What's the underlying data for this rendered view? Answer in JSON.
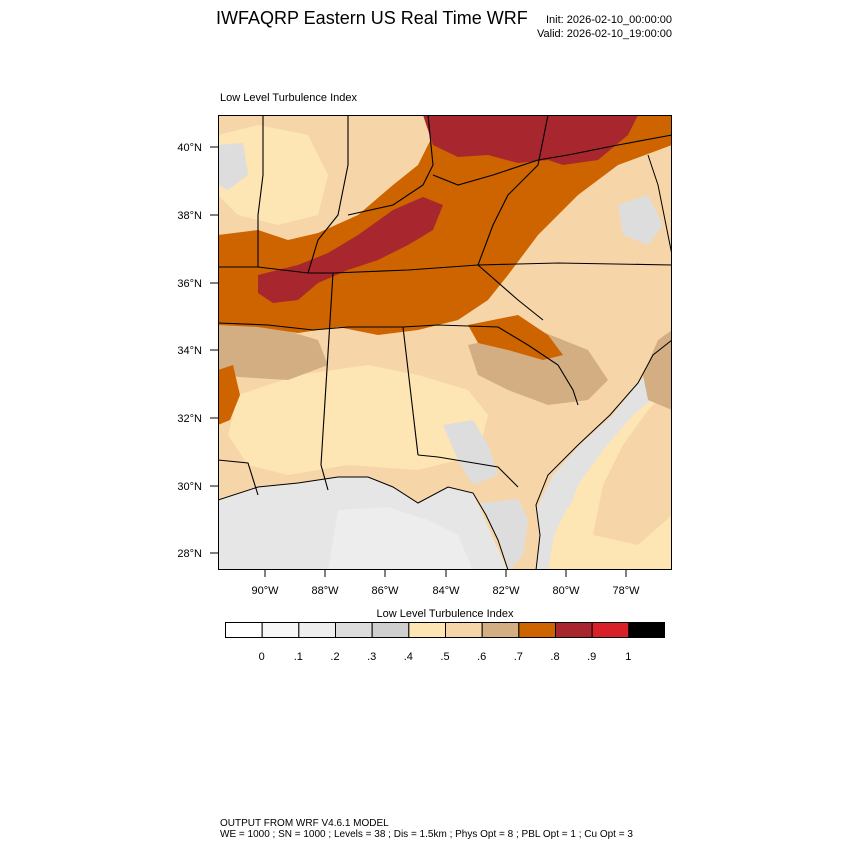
{
  "header": {
    "title": "IWFAQRP Eastern US Real Time WRF",
    "init": "Init: 2026-02-10_00:00:00",
    "valid": "Valid: 2026-02-10_19:00:00"
  },
  "map": {
    "field_label": "Low Level Turbulence Index",
    "lat_ticks": [
      "40°N",
      "38°N",
      "36°N",
      "34°N",
      "32°N",
      "30°N",
      "28°N"
    ],
    "lon_ticks": [
      "90°W",
      "88°W",
      "86°W",
      "84°W",
      "82°W",
      "80°W",
      "78°W"
    ]
  },
  "colorbar": {
    "title": "Low Level Turbulence Index",
    "colors": [
      "#ffffff",
      "#f7f7f7",
      "#eeeeee",
      "#dddddd",
      "#cfcfcf",
      "#fde5b4",
      "#f6d6a8",
      "#d3ae82",
      "#cd6400",
      "#a8262e",
      "#d72027",
      "#000000"
    ],
    "labels": [
      "0",
      ".1",
      ".2",
      ".3",
      ".4",
      ".5",
      ".6",
      ".7",
      ".8",
      ".9",
      "1"
    ]
  },
  "footer": {
    "line1": "OUTPUT FROM WRF V4.6.1 MODEL",
    "line2": "WE = 1000 ; SN = 1000 ; Levels = 38 ; Dis = 1.5km ; Phys Opt = 8 ; PBL Opt = 1 ; Cu Opt = 3"
  }
}
